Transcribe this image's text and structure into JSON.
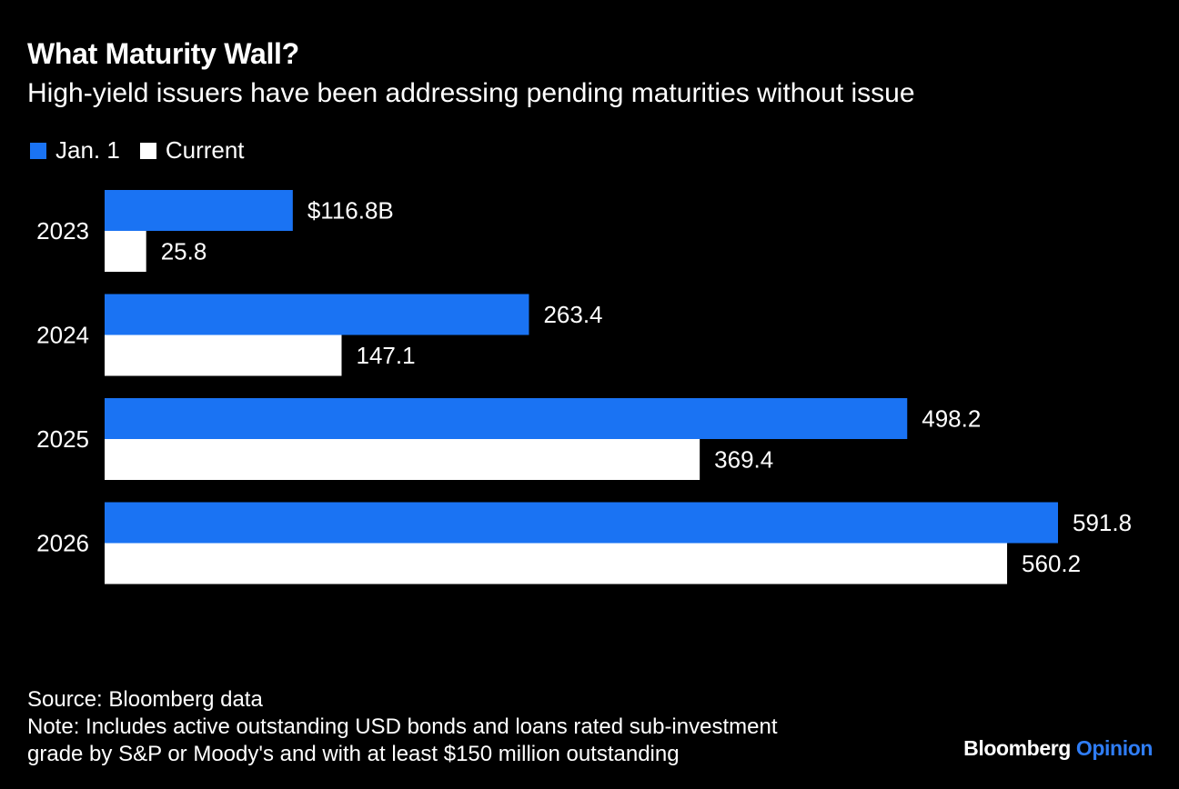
{
  "header": {
    "title": "What Maturity Wall?",
    "subtitle": "High-yield issuers have been addressing pending maturities without issue"
  },
  "chart_data": {
    "type": "bar",
    "orientation": "horizontal",
    "categories": [
      "2023",
      "2024",
      "2025",
      "2026"
    ],
    "series": [
      {
        "name": "Jan. 1",
        "color": "#1a73f3",
        "values": [
          116.8,
          263.4,
          498.2,
          591.8
        ],
        "labels": [
          "$116.8B",
          "263.4",
          "498.2",
          "591.8"
        ]
      },
      {
        "name": "Current",
        "color": "#ffffff",
        "values": [
          25.8,
          147.1,
          369.4,
          560.2
        ],
        "labels": [
          "25.8",
          "147.1",
          "369.4",
          "560.2"
        ]
      }
    ],
    "xlim": [
      0,
      591.8
    ],
    "unit": "$B",
    "legend_position": "top-left",
    "grid": false
  },
  "footer": {
    "source": "Source: Bloomberg data",
    "note_line1": "Note: Includes active outstanding USD bonds and loans rated sub-investment",
    "note_line2": "grade by S&P or Moody's and with at least $150 million outstanding"
  },
  "brand": {
    "name": "Bloomberg",
    "section": "Opinion",
    "section_color": "#2f7df6"
  }
}
